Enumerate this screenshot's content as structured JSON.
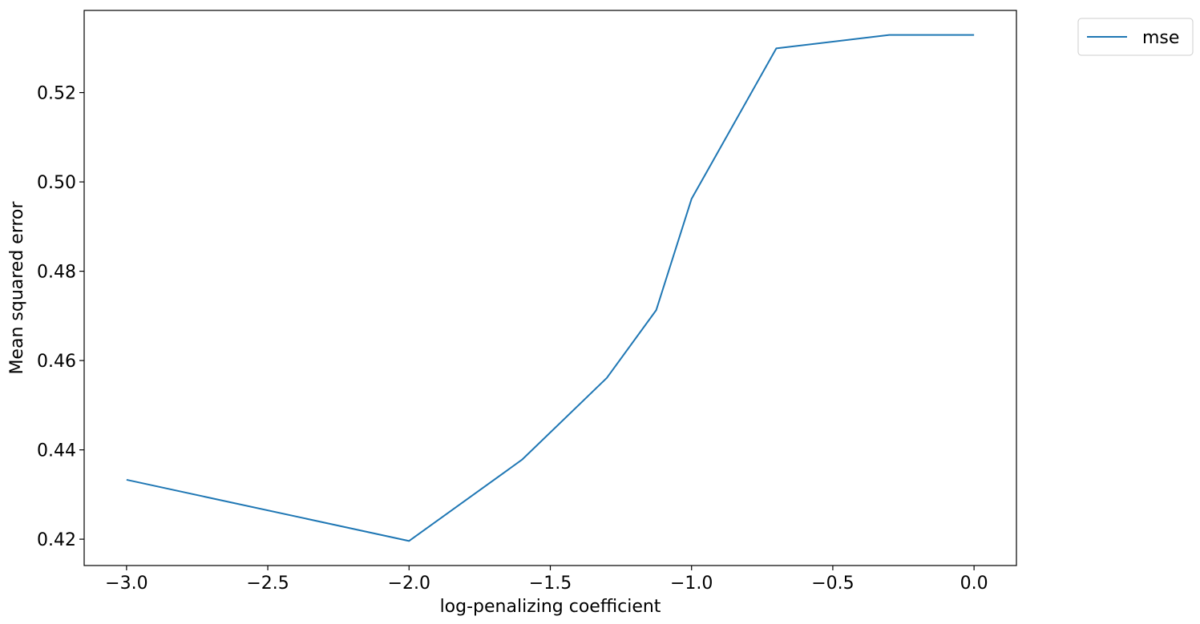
{
  "chart_data": {
    "type": "line",
    "title": "",
    "xlabel": "log-penalizing coefficient",
    "ylabel": "Mean squared error",
    "xlim": [
      -3.15,
      0.15
    ],
    "ylim": [
      0.4141,
      0.5384
    ],
    "xticks": [
      -3.0,
      -2.5,
      -2.0,
      -1.5,
      -1.0,
      -0.5,
      0.0
    ],
    "xtick_labels": [
      "−3.0",
      "−2.5",
      "−2.0",
      "−1.5",
      "−1.0",
      "−0.5",
      "0.0"
    ],
    "yticks": [
      0.42,
      0.44,
      0.46,
      0.48,
      0.5,
      0.52
    ],
    "ytick_labels": [
      "0.42",
      "0.44",
      "0.46",
      "0.48",
      "0.50",
      "0.52"
    ],
    "grid": false,
    "legend_position": "outside-top-right",
    "series": [
      {
        "name": "mse",
        "color": "#1f77b4",
        "x": [
          -3.0,
          -2.0,
          -1.6,
          -1.3,
          -1.125,
          -1.0,
          -0.7,
          -0.3,
          0.0
        ],
        "y": [
          0.4333,
          0.4196,
          0.4378,
          0.4561,
          0.4713,
          0.4962,
          0.5299,
          0.5329,
          0.5329
        ]
      }
    ]
  }
}
